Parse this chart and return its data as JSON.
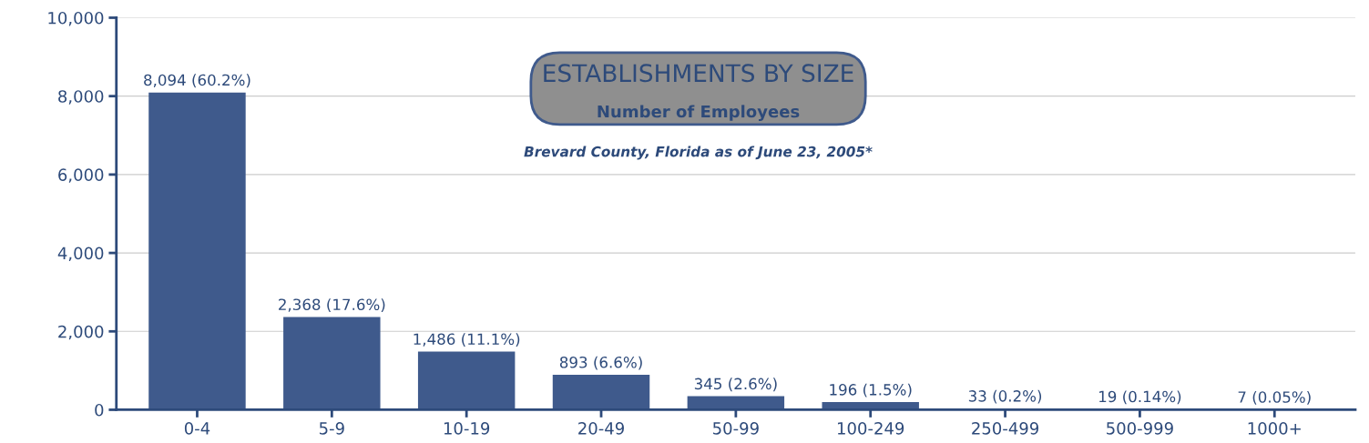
{
  "chart_data": {
    "type": "bar",
    "title": "ESTABLISHMENTS BY SIZE",
    "subtitle": "Number of Employees",
    "annotations": [
      "Brevard County, Florida as of June 23, 2005*"
    ],
    "categories": [
      "0-4",
      "5-9",
      "10-19",
      "20-49",
      "50-99",
      "100-249",
      "250-499",
      "500-999",
      "1000+"
    ],
    "values": [
      8094,
      2368,
      1486,
      893,
      345,
      196,
      33,
      19,
      7
    ],
    "value_labels": [
      "8,094 (60.2%)",
      "2,368 (17.6%)",
      "1,486 (11.1%)",
      "893 (6.6%)",
      "345 (2.6%)",
      "196 (1.5%)",
      "33 (0.2%)",
      "19 (0.14%)",
      "7 (0.05%)"
    ],
    "color": "#3f5a8c",
    "ylim": [
      0,
      10000
    ],
    "yticks": [
      0,
      {
        "value": 2000,
        "label": "2,000"
      },
      {
        "value": 4000,
        "label": "4,000"
      },
      {
        "value": 6000,
        "label": "6,000"
      },
      {
        "value": 8000,
        "label": "8,000"
      },
      {
        "value": 10000,
        "label": "10,000"
      }
    ],
    "grid": "y",
    "legend": false
  }
}
